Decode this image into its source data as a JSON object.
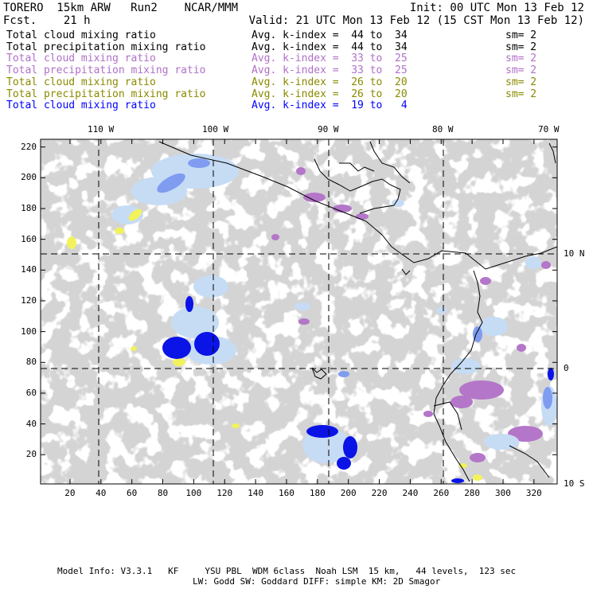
{
  "header": {
    "model": "TORERO  15km ARW   Run2    NCAR/MMM",
    "forecast": "Fcst.    21 h",
    "init": "Init: 00 UTC Mon 13 Feb 12",
    "valid": "Valid: 21 UTC Mon 13 Feb 12 (15 CST Mon 13 Feb 12)"
  },
  "legend": [
    {
      "field": "Total cloud mixing ratio",
      "range": "Avg. k-index =  44 to  34",
      "sm": "sm= 2",
      "color": "#000000"
    },
    {
      "field": "Total precipitation mixing ratio",
      "range": "Avg. k-index =  44 to  34",
      "sm": "sm= 2",
      "color": "#000000"
    },
    {
      "field": "Total cloud mixing ratio",
      "range": "Avg. k-index =  33 to  25",
      "sm": "sm= 2",
      "color": "#b070c8"
    },
    {
      "field": "Total precipitation mixing ratio",
      "range": "Avg. k-index =  33 to  25",
      "sm": "sm= 2",
      "color": "#b070c8"
    },
    {
      "field": "Total cloud mixing ratio",
      "range": "Avg. k-index =  26 to  20",
      "sm": "sm= 2",
      "color": "#8a8a00"
    },
    {
      "field": "Total precipitation mixing ratio",
      "range": "Avg. k-index =  26 to  20",
      "sm": "sm= 2",
      "color": "#8a8a00"
    },
    {
      "field": "Total cloud mixing ratio",
      "range": "Avg. k-index =  19 to   4",
      "sm": "",
      "color": "#0000ff"
    }
  ],
  "axes": {
    "x_ticks": [
      "20",
      "40",
      "60",
      "80",
      "100",
      "120",
      "140",
      "160",
      "180",
      "200",
      "220",
      "240",
      "260",
      "280",
      "300",
      "320"
    ],
    "y_ticks": [
      "20",
      "40",
      "60",
      "80",
      "100",
      "120",
      "140",
      "160",
      "180",
      "200",
      "220"
    ],
    "lon_labels": [
      "110 W",
      "100 W",
      "90 W",
      "80 W",
      "70 W"
    ],
    "lat_labels": [
      "10 N",
      "0",
      "10 S"
    ]
  },
  "colors": {
    "cloud": "#a9a9a9",
    "light_blue": "#c6dcf5",
    "mid_blue": "#7f9cf0",
    "dark_blue": "#0a14e6",
    "magenta": "#b476c8",
    "yellow": "#f2f25a"
  },
  "footer": {
    "line1": "Model Info: V3.3.1   KF     YSU PBL  WDM 6class  Noah LSM  15 km,   44 levels,  123 sec",
    "line2": "LW: Godd SW: Goddard DIFF: simple KM: 2D Smagor"
  }
}
